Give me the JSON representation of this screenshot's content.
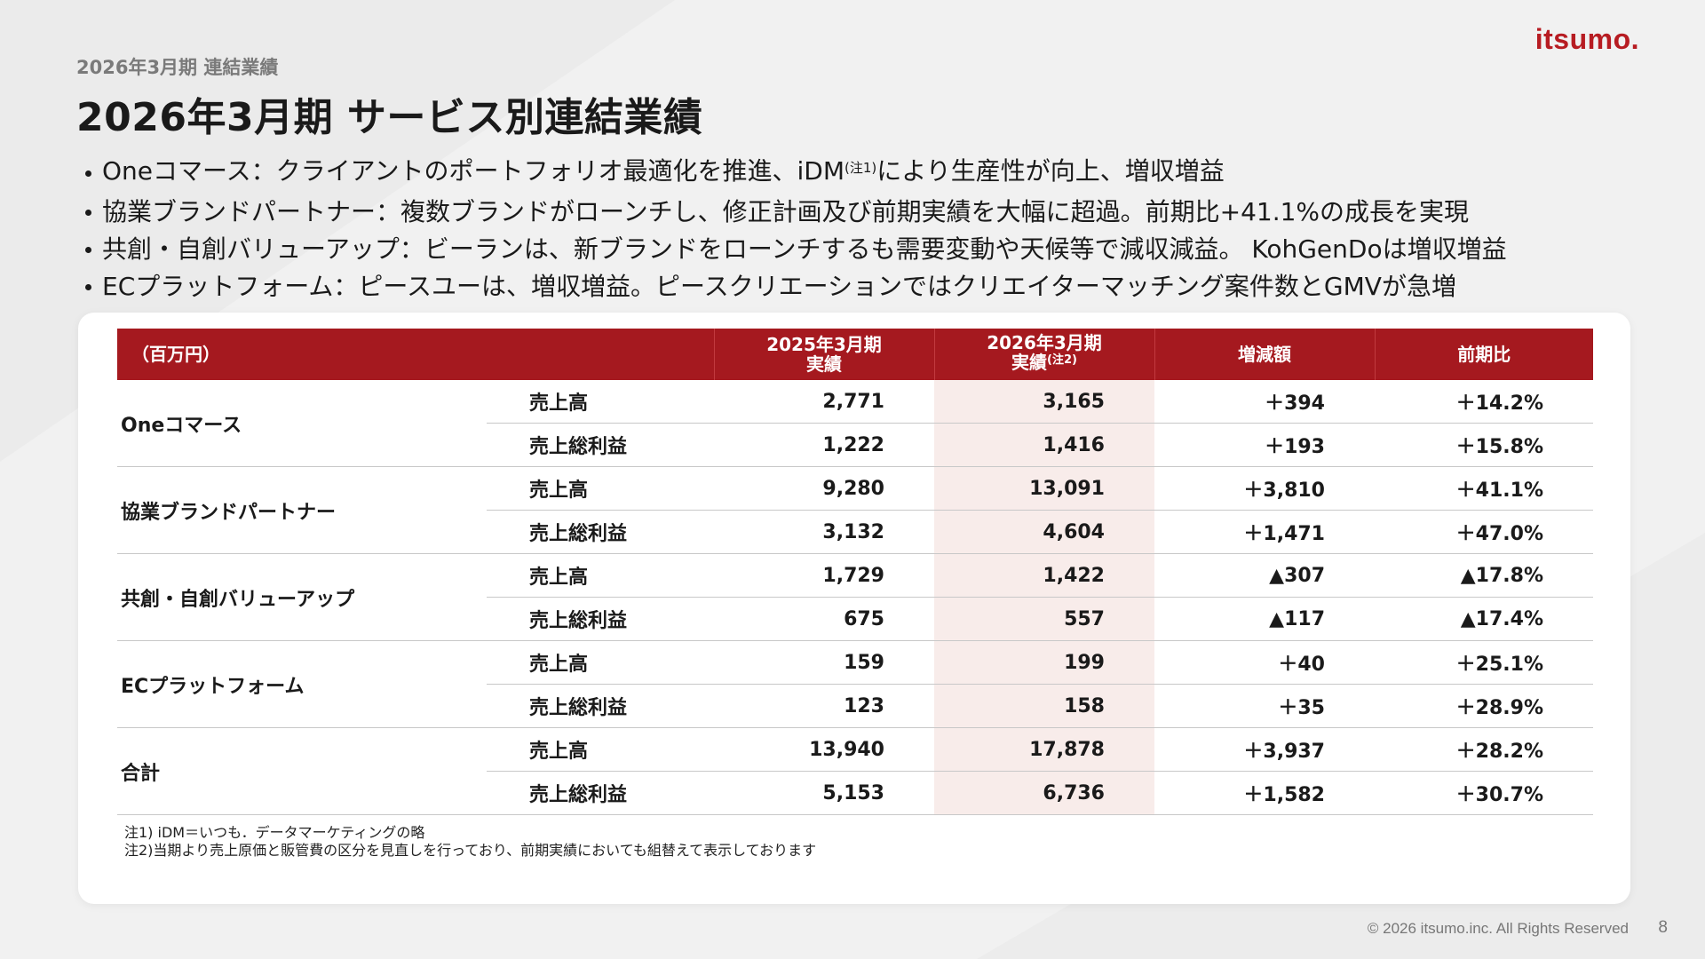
{
  "header": {
    "subtitle": "2026年3月期 連結業績",
    "title": "2026年3月期 サービス別連結業績"
  },
  "brand": {
    "logo": "itsumo.",
    "accent": "#b71c22"
  },
  "bullets": [
    {
      "pre": "Oneコマース：クライアントのポートフォリオ最適化を推進、iDM",
      "sup": "(注1)",
      "post": "により生産性が向上、増収増益"
    },
    {
      "pre": "協業ブランドパートナー：複数ブランドがローンチし、修正計画及び前期実績を大幅に超過。前期比+41.1%の成長を実現",
      "sup": "",
      "post": ""
    },
    {
      "pre": "共創・自創バリューアップ：ビーランは、新ブランドをローンチするも需要変動や天候等で減収減益。 KohGenDoは増収増益",
      "sup": "",
      "post": ""
    },
    {
      "pre": "ECプラットフォーム：ピースユーは、増収増益。ピースクリエーションではクリエイターマッチング案件数とGMVが急増",
      "sup": "",
      "post": ""
    }
  ],
  "table": {
    "header": {
      "unit": "（百万円）",
      "prev_line1": "2025年3月期",
      "prev_line2": "実績",
      "curr_line1": "2026年3月期",
      "curr_line2": "実績",
      "curr_sup": "(注2)",
      "diff": "増減額",
      "yoy": "前期比"
    },
    "segments": [
      {
        "name": "Oneコマース",
        "rows": [
          {
            "metric": "売上高",
            "prev": "2,771",
            "curr": "3,165",
            "diff": "＋394",
            "yoy": "＋14.2%"
          },
          {
            "metric": "売上総利益",
            "prev": "1,222",
            "curr": "1,416",
            "diff": "＋193",
            "yoy": "＋15.8%"
          }
        ]
      },
      {
        "name": "協業ブランドパートナー",
        "rows": [
          {
            "metric": "売上高",
            "prev": "9,280",
            "curr": "13,091",
            "diff": "＋3,810",
            "yoy": "＋41.1%"
          },
          {
            "metric": "売上総利益",
            "prev": "3,132",
            "curr": "4,604",
            "diff": "＋1,471",
            "yoy": "＋47.0%"
          }
        ]
      },
      {
        "name": "共創・自創バリューアップ",
        "rows": [
          {
            "metric": "売上高",
            "prev": "1,729",
            "curr": "1,422",
            "diff": "▲307",
            "yoy": "▲17.8%"
          },
          {
            "metric": "売上総利益",
            "prev": "675",
            "curr": "557",
            "diff": "▲117",
            "yoy": "▲17.4%"
          }
        ]
      },
      {
        "name": "ECプラットフォーム",
        "rows": [
          {
            "metric": "売上高",
            "prev": "159",
            "curr": "199",
            "diff": "＋40",
            "yoy": "＋25.1%"
          },
          {
            "metric": "売上総利益",
            "prev": "123",
            "curr": "158",
            "diff": "＋35",
            "yoy": "＋28.9%"
          }
        ]
      },
      {
        "name": "合計",
        "rows": [
          {
            "metric": "売上高",
            "prev": "13,940",
            "curr": "17,878",
            "diff": "＋3,937",
            "yoy": "＋28.2%"
          },
          {
            "metric": "売上総利益",
            "prev": "5,153",
            "curr": "6,736",
            "diff": "＋1,582",
            "yoy": "＋30.7%"
          }
        ]
      }
    ]
  },
  "notes": [
    "注1) iDM＝いつも．データマーケティングの略",
    "注2)当期より売上原価と販管費の区分を見直しを行っており、前期実績においても組替えて表示しております"
  ],
  "footer": {
    "copyright": "© 2026 itsumo.inc. All Rights Reserved",
    "page": "8"
  }
}
